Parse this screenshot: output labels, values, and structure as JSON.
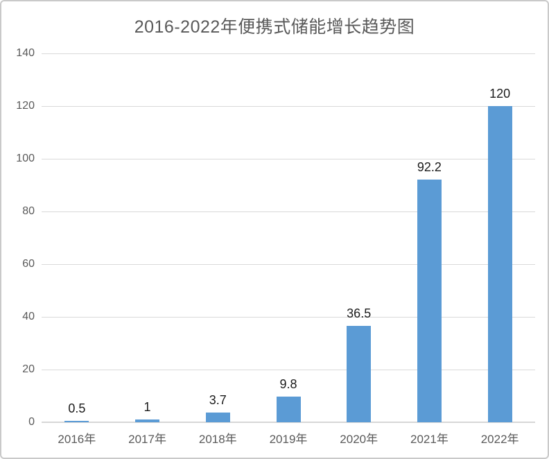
{
  "chart_data": {
    "type": "bar",
    "title": "2016-2022年便携式储能增长趋势图",
    "categories": [
      "2016年",
      "2017年",
      "2018年",
      "2019年",
      "2020年",
      "2021年",
      "2022年"
    ],
    "values": [
      0.5,
      1,
      3.7,
      9.8,
      36.5,
      92.2,
      120
    ],
    "data_labels": [
      "0.5",
      "1",
      "3.7",
      "9.8",
      "36.5",
      "92.2",
      "120"
    ],
    "xlabel": "",
    "ylabel": "",
    "ylim": [
      0,
      140
    ],
    "yticks": [
      0,
      20,
      40,
      60,
      80,
      100,
      120,
      140
    ],
    "grid": true,
    "legend_position": "none",
    "bar_color": "#5B9BD5",
    "gridline_color": "#D9D9D9",
    "axis_line_color": "#D6D6D6",
    "title_color": "#595959",
    "tick_label_color": "#595959",
    "data_label_color": "#1A1A1A"
  }
}
